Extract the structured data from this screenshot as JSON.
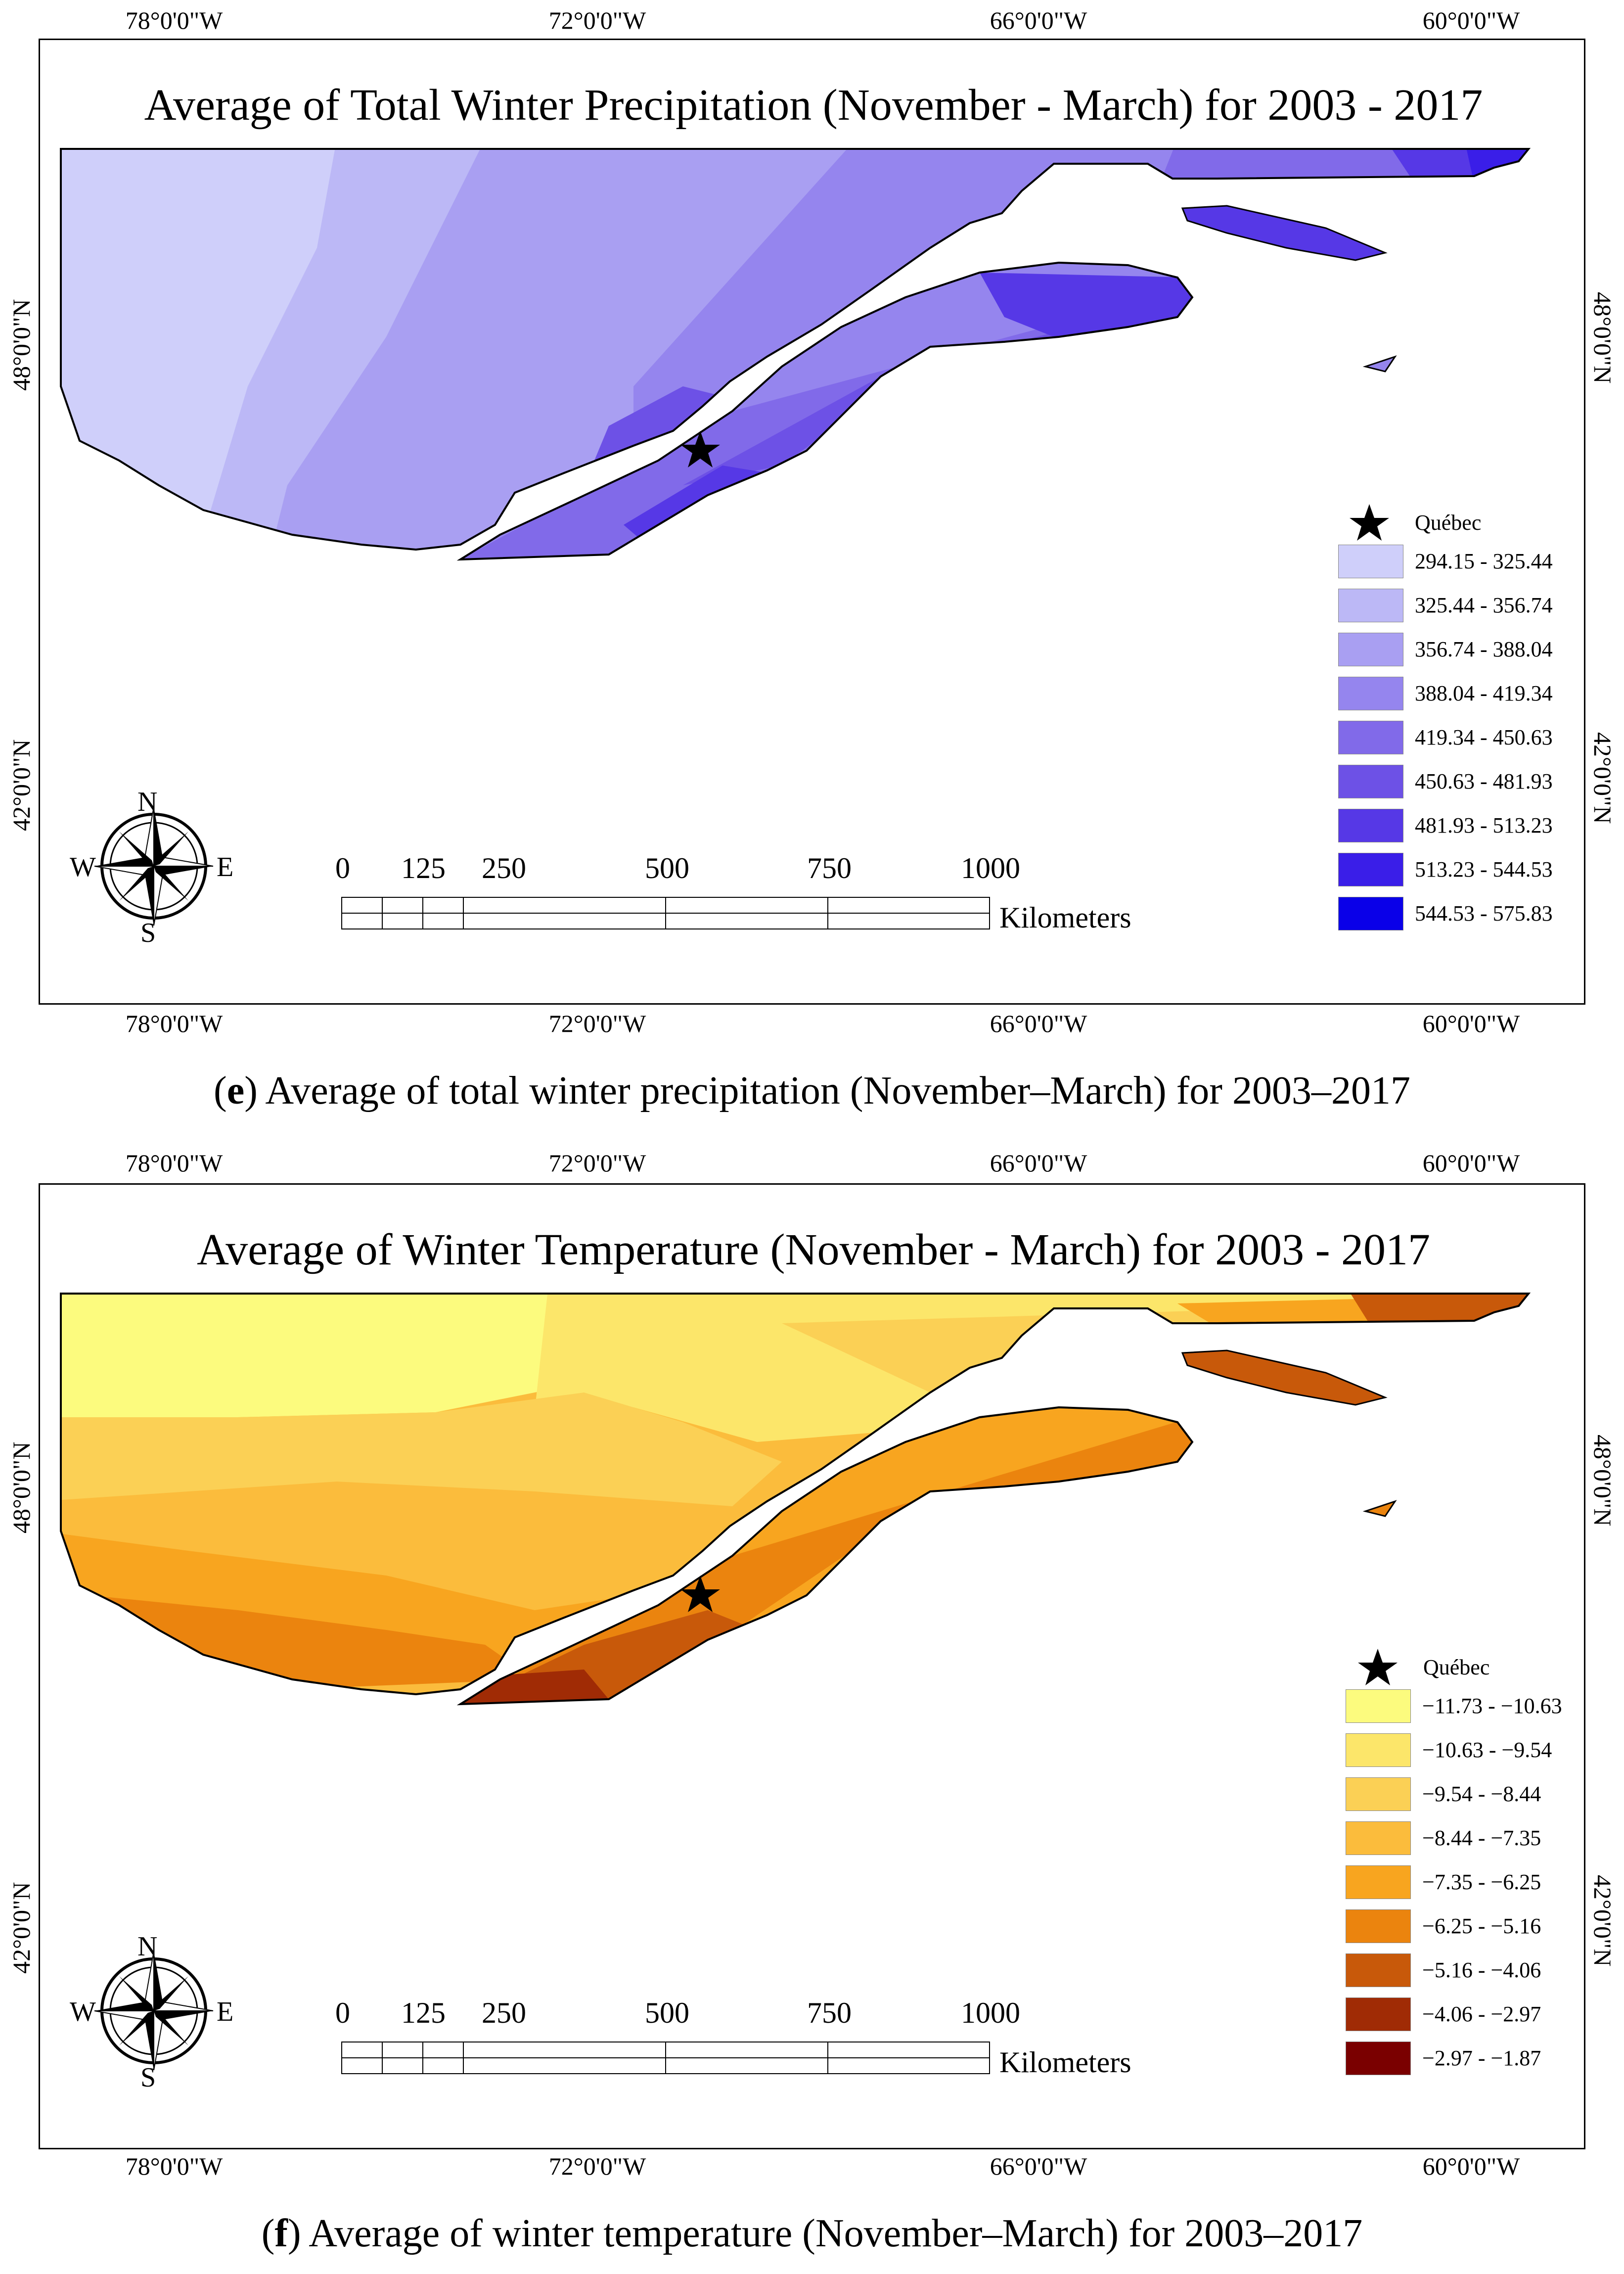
{
  "panels": [
    {
      "id": "e",
      "title": "Average of Total Winter Precipitation (November - March) for 2003 - 2017",
      "caption_letter": "e",
      "caption_text": " Average of total winter precipitation (November–March) for 2003–2017",
      "palette": "blue",
      "legend": [
        {
          "label": "294.15 - 325.44",
          "color": "#cfcffa"
        },
        {
          "label": "325.44 - 356.74",
          "color": "#bcb8f6"
        },
        {
          "label": "356.74 - 388.04",
          "color": "#a99ff2"
        },
        {
          "label": "388.04 - 419.34",
          "color": "#9585ee"
        },
        {
          "label": "419.34 - 450.63",
          "color": "#816ae9"
        },
        {
          "label": "450.63 - 481.93",
          "color": "#6d51e6"
        },
        {
          "label": "481.93 - 513.23",
          "color": "#5638e6"
        },
        {
          "label": "513.23 - 544.53",
          "color": "#3a1ee8"
        },
        {
          "label": "544.53 - 575.83",
          "color": "#0a00e8"
        }
      ]
    },
    {
      "id": "f",
      "title": "Average of Winter Temperature (November - March) for 2003 - 2017",
      "caption_letter": "f",
      "caption_text": " Average of winter temperature (November–March) for 2003–2017",
      "palette": "orange",
      "legend": [
        {
          "label": "−11.73 - −10.63",
          "color": "#fcfb7e"
        },
        {
          "label": "−10.63 - −9.54",
          "color": "#fce66a"
        },
        {
          "label": "−9.54 - −8.44",
          "color": "#fbd055"
        },
        {
          "label": "−8.44 - −7.35",
          "color": "#fbbc3c"
        },
        {
          "label": "−7.35 - −6.25",
          "color": "#f8a51f"
        },
        {
          "label": "−6.25 - −5.16",
          "color": "#eb840e"
        },
        {
          "label": "−5.16 - −4.06",
          "color": "#c8590a"
        },
        {
          "label": "−4.06 - −2.97",
          "color": "#a02b05"
        },
        {
          "label": "−2.97 - −1.87",
          "color": "#7a0000"
        }
      ]
    }
  ],
  "axes": {
    "longitudes": [
      "78°0'0\"W",
      "72°0'0\"W",
      "66°0'0\"W",
      "60°0'0\"W"
    ],
    "latitudes": [
      "48°0'0\"N",
      "42°0'0\"N"
    ]
  },
  "city_label": "Québec",
  "scale": {
    "ticks": [
      "0",
      "125",
      "250",
      "500",
      "750",
      "1000"
    ],
    "unit": "Kilometers"
  },
  "compass": {
    "n": "N",
    "s": "S",
    "e": "E",
    "w": "W"
  }
}
